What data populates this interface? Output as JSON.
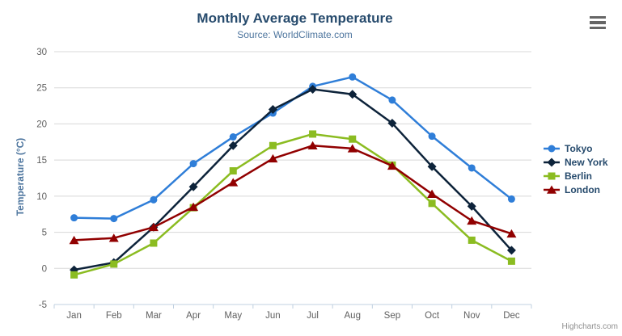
{
  "header": {
    "title": "Monthly Average Temperature",
    "subtitle": "Source: WorldClimate.com"
  },
  "credits": "Highcharts.com",
  "icons": {
    "context_menu": "hamburger-icon"
  },
  "colors": {
    "title_text": "#274b6d",
    "subtitle_text": "#4d759e",
    "axis_label_text": "#606060",
    "axis_line": "#c0d0e0",
    "gridline": "#d8d8d8",
    "legend_text": "#274b6d",
    "credits_text": "#909090",
    "hamburger": "#666666"
  },
  "chart_data": {
    "type": "line",
    "title": "Monthly Average Temperature",
    "subtitle": "Source: WorldClimate.com",
    "xlabel": "",
    "ylabel": "Temperature (°C)",
    "ylim": [
      -5,
      30
    ],
    "y_tick_interval": 5,
    "grid": true,
    "legend_position": "right",
    "categories": [
      "Jan",
      "Feb",
      "Mar",
      "Apr",
      "May",
      "Jun",
      "Jul",
      "Aug",
      "Sep",
      "Oct",
      "Nov",
      "Dec"
    ],
    "series": [
      {
        "name": "Tokyo",
        "color": "#2f7ed8",
        "marker": "circle",
        "values": [
          7.0,
          6.9,
          9.5,
          14.5,
          18.2,
          21.5,
          25.2,
          26.5,
          23.3,
          18.3,
          13.9,
          9.6
        ]
      },
      {
        "name": "New York",
        "color": "#0d233a",
        "marker": "diamond",
        "values": [
          -0.2,
          0.8,
          5.7,
          11.3,
          17.0,
          22.0,
          24.8,
          24.1,
          20.1,
          14.1,
          8.6,
          2.5
        ]
      },
      {
        "name": "Berlin",
        "color": "#8bbc21",
        "marker": "square",
        "values": [
          -0.9,
          0.6,
          3.5,
          8.4,
          13.5,
          17.0,
          18.6,
          17.9,
          14.3,
          9.0,
          3.9,
          1.0
        ]
      },
      {
        "name": "London",
        "color": "#910000",
        "marker": "triangle",
        "values": [
          3.9,
          4.2,
          5.7,
          8.5,
          11.9,
          15.2,
          17.0,
          16.6,
          14.2,
          10.3,
          6.6,
          4.8
        ]
      }
    ]
  }
}
